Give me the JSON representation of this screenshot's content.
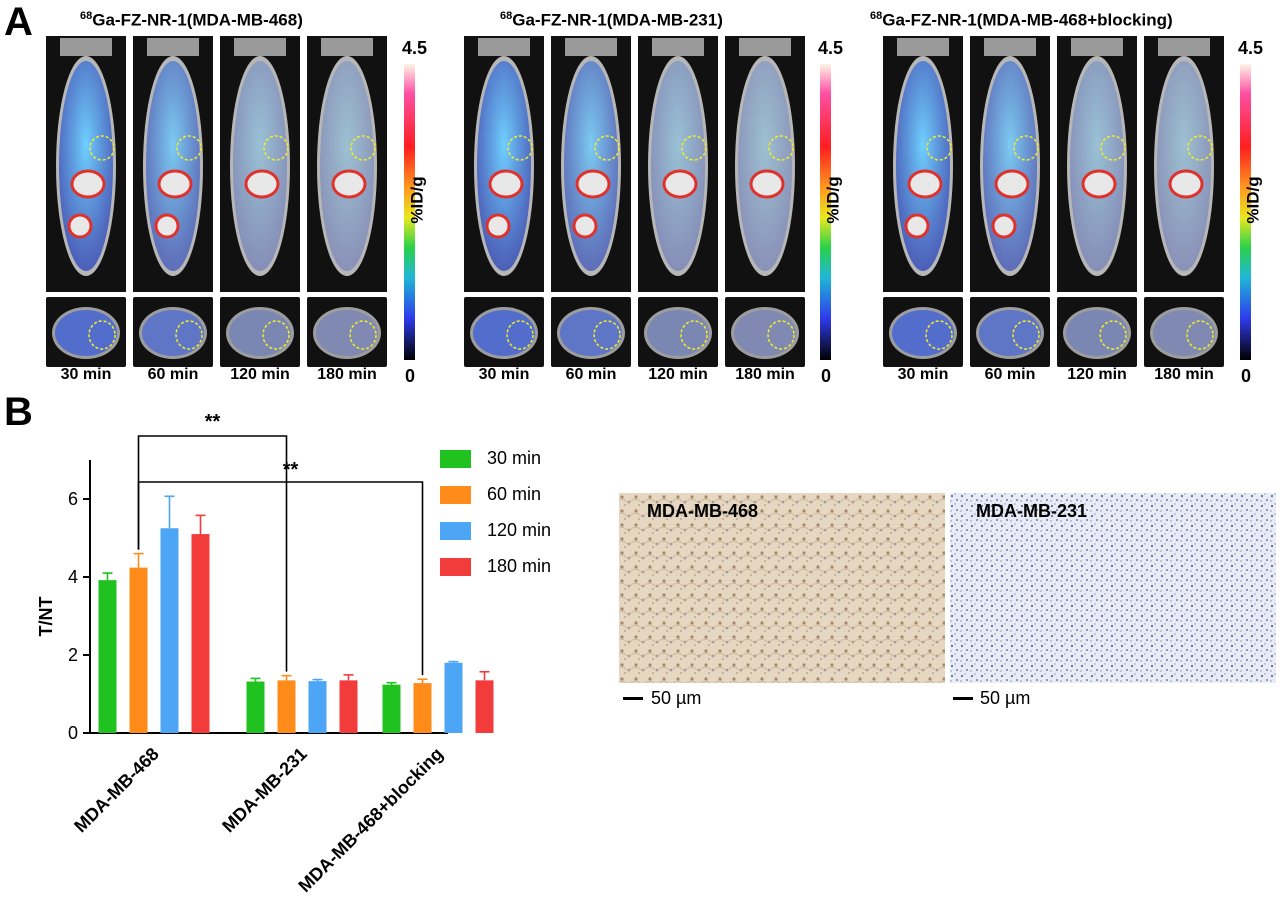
{
  "panel_a": {
    "letter": "A",
    "colorbar": {
      "max": "4.5",
      "min": "0",
      "unit": "%ID/g"
    },
    "groups": [
      {
        "isotope": "68",
        "title": "Ga-FZ-NR-1(MDA-MB-468)",
        "timepoints": [
          "30 min",
          "60 min",
          "120 min",
          "180 min"
        ]
      },
      {
        "isotope": "68",
        "title": "Ga-FZ-NR-1(MDA-MB-231)",
        "timepoints": [
          "30 min",
          "60 min",
          "120 min",
          "180 min"
        ]
      },
      {
        "isotope": "68",
        "title": "Ga-FZ-NR-1(MDA-MB-468+blocking)",
        "timepoints": [
          "30 min",
          "60 min",
          "120 min",
          "180 min"
        ]
      }
    ]
  },
  "panel_b": {
    "letter": "B",
    "significance": [
      "**",
      "**"
    ],
    "histology": [
      {
        "label": "MDA-MB-468",
        "scale": "50 µm"
      },
      {
        "label": "MDA-MB-231",
        "scale": "50 µm"
      }
    ]
  },
  "chart_data": {
    "type": "bar",
    "title": "",
    "xlabel": "",
    "ylabel": "T/NT",
    "ylim": [
      0,
      7
    ],
    "yticks": [
      0,
      2,
      4,
      6
    ],
    "categories": [
      "MDA-MB-468",
      "MDA-MB-231",
      "MDA-MB-468+blocking"
    ],
    "series": [
      {
        "name": "30 min",
        "color": "#1fc21f",
        "values": [
          3.92,
          1.32,
          1.24
        ],
        "errors": [
          0.18,
          0.08,
          0.05
        ]
      },
      {
        "name": "60 min",
        "color": "#ff8c1a",
        "values": [
          4.24,
          1.35,
          1.28
        ],
        "errors": [
          0.36,
          0.12,
          0.1
        ]
      },
      {
        "name": "120 min",
        "color": "#4da6f5",
        "values": [
          5.25,
          1.33,
          1.8
        ],
        "errors": [
          0.82,
          0.04,
          0.03
        ]
      },
      {
        "name": "180 min",
        "color": "#f23c3c",
        "values": [
          5.1,
          1.35,
          1.35
        ],
        "errors": [
          0.48,
          0.14,
          0.22
        ]
      }
    ],
    "legend_position": "top-right",
    "grid": false
  }
}
